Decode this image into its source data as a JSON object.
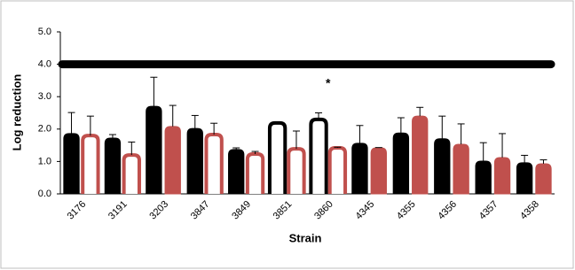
{
  "chart_data": {
    "type": "bar",
    "y_label": "Log reduction",
    "x_label": "Strain",
    "categories": [
      "3176",
      "3191",
      "3203",
      "3847",
      "3849",
      "3851",
      "3860",
      "4345",
      "4355",
      "4356",
      "4357",
      "4358"
    ],
    "series": [
      {
        "color": "#000000",
        "values": [
          1.86,
          1.72,
          2.7,
          2.02,
          1.37,
          2.19,
          2.3,
          1.56,
          1.88,
          1.7,
          1.01,
          0.96
        ],
        "errors": [
          0.65,
          0.11,
          0.9,
          0.4,
          0.05,
          0.02,
          0.2,
          0.55,
          0.47,
          0.7,
          0.57,
          0.23
        ],
        "hollow": [
          false,
          false,
          false,
          false,
          false,
          true,
          true,
          false,
          false,
          false,
          false,
          false
        ]
      },
      {
        "color": "#c0504d",
        "values": [
          1.8,
          1.2,
          2.08,
          1.83,
          1.23,
          1.39,
          1.42,
          1.42,
          2.4,
          1.53,
          1.12,
          0.93
        ],
        "errors": [
          0.6,
          0.4,
          0.65,
          0.35,
          0.08,
          0.55,
          0.02,
          0.01,
          0.27,
          0.63,
          0.74,
          0.12
        ],
        "hollow": [
          true,
          true,
          false,
          true,
          true,
          true,
          true,
          false,
          false,
          false,
          false,
          false
        ]
      }
    ],
    "reference_line": 4,
    "annotations": [
      {
        "text": "*",
        "category": "3860"
      }
    ],
    "ylim": [
      0,
      5
    ],
    "yticks": [
      {
        "value": 0,
        "label": "0.0"
      },
      {
        "value": 1,
        "label": "1.0"
      },
      {
        "value": 2,
        "label": "2.0"
      },
      {
        "value": 3,
        "label": "3.0"
      },
      {
        "value": 4,
        "label": "4.0"
      },
      {
        "value": 5,
        "label": "5.0"
      }
    ]
  }
}
